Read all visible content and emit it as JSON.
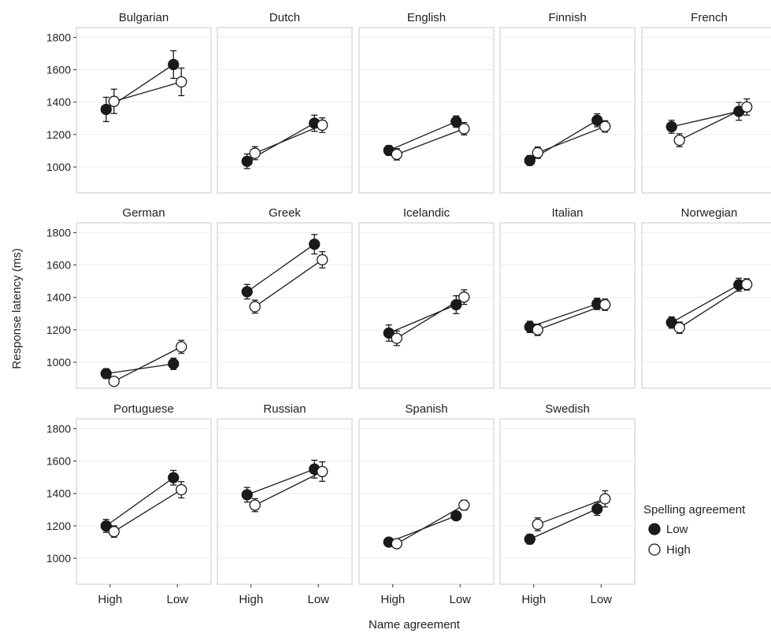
{
  "chart_data": {
    "type": "line",
    "facet": "small-multiples",
    "xlabel": "Name agreement",
    "ylabel": "Response latency (ms)",
    "categories": [
      "High",
      "Low"
    ],
    "yticks": [
      1000,
      1200,
      1400,
      1600,
      1800
    ],
    "ylim": [
      840,
      1860
    ],
    "grid": true,
    "legend": {
      "title": "Spelling agreement",
      "position": "right",
      "entries": [
        {
          "name": "Low",
          "marker": "filled-circle",
          "color": "#1a1a1a"
        },
        {
          "name": "High",
          "marker": "open-circle",
          "color": "#1a1a1a"
        }
      ]
    },
    "panels": [
      {
        "language": "Bulgarian",
        "series": [
          {
            "name": "Low",
            "values": [
              1355,
              1632
            ],
            "errors": [
              75,
              85
            ]
          },
          {
            "name": "High",
            "values": [
              1405,
              1525
            ],
            "errors": [
              75,
              85
            ]
          }
        ]
      },
      {
        "language": "Dutch",
        "series": [
          {
            "name": "Low",
            "values": [
              1035,
              1270
            ],
            "errors": [
              45,
              50
            ]
          },
          {
            "name": "High",
            "values": [
              1085,
              1258
            ],
            "errors": [
              40,
              45
            ]
          }
        ]
      },
      {
        "language": "English",
        "series": [
          {
            "name": "Low",
            "values": [
              1102,
              1280
            ],
            "errors": [
              30,
              35
            ]
          },
          {
            "name": "High",
            "values": [
              1078,
              1236
            ],
            "errors": [
              35,
              38
            ]
          }
        ]
      },
      {
        "language": "Finnish",
        "series": [
          {
            "name": "Low",
            "values": [
              1040,
              1288
            ],
            "errors": [
              30,
              40
            ]
          },
          {
            "name": "High",
            "values": [
              1088,
              1250
            ],
            "errors": [
              35,
              35
            ]
          }
        ]
      },
      {
        "language": "French",
        "series": [
          {
            "name": "Low",
            "values": [
              1248,
              1343
            ],
            "errors": [
              40,
              55
            ]
          },
          {
            "name": "High",
            "values": [
              1165,
              1370
            ],
            "errors": [
              40,
              50
            ]
          }
        ]
      },
      {
        "language": "German",
        "series": [
          {
            "name": "Low",
            "values": [
              930,
              990
            ],
            "errors": [
              30,
              35
            ]
          },
          {
            "name": "High",
            "values": [
              882,
              1095
            ],
            "errors": [
              25,
              40
            ]
          }
        ]
      },
      {
        "language": "Greek",
        "series": [
          {
            "name": "Low",
            "values": [
              1435,
              1728
            ],
            "errors": [
              45,
              60
            ]
          },
          {
            "name": "High",
            "values": [
              1343,
              1632
            ],
            "errors": [
              40,
              50
            ]
          }
        ]
      },
      {
        "language": "Icelandic",
        "series": [
          {
            "name": "Low",
            "values": [
              1180,
              1355
            ],
            "errors": [
              50,
              55
            ]
          },
          {
            "name": "High",
            "values": [
              1148,
              1402
            ],
            "errors": [
              45,
              45
            ]
          }
        ]
      },
      {
        "language": "Italian",
        "series": [
          {
            "name": "Low",
            "values": [
              1218,
              1360
            ],
            "errors": [
              35,
              35
            ]
          },
          {
            "name": "High",
            "values": [
              1200,
              1355
            ],
            "errors": [
              35,
              35
            ]
          }
        ]
      },
      {
        "language": "Norwegian",
        "series": [
          {
            "name": "Low",
            "values": [
              1245,
              1478
            ],
            "errors": [
              35,
              40
            ]
          },
          {
            "name": "High",
            "values": [
              1213,
              1480
            ],
            "errors": [
              35,
              35
            ]
          }
        ]
      },
      {
        "language": "Portuguese",
        "series": [
          {
            "name": "Low",
            "values": [
              1200,
              1497
            ],
            "errors": [
              40,
              45
            ]
          },
          {
            "name": "High",
            "values": [
              1165,
              1423
            ],
            "errors": [
              35,
              50
            ]
          }
        ]
      },
      {
        "language": "Russian",
        "series": [
          {
            "name": "Low",
            "values": [
              1392,
              1550
            ],
            "errors": [
              45,
              55
            ]
          },
          {
            "name": "High",
            "values": [
              1328,
              1535
            ],
            "errors": [
              40,
              60
            ]
          }
        ]
      },
      {
        "language": "Spanish",
        "series": [
          {
            "name": "Low",
            "values": [
              1100,
              1262
            ],
            "errors": [
              20,
              25
            ]
          },
          {
            "name": "High",
            "values": [
              1090,
              1328
            ],
            "errors": [
              20,
              30
            ]
          }
        ]
      },
      {
        "language": "Swedish",
        "series": [
          {
            "name": "Low",
            "values": [
              1118,
              1305
            ],
            "errors": [
              30,
              40
            ]
          },
          {
            "name": "High",
            "values": [
              1210,
              1367
            ],
            "errors": [
              40,
              50
            ]
          }
        ]
      }
    ]
  }
}
